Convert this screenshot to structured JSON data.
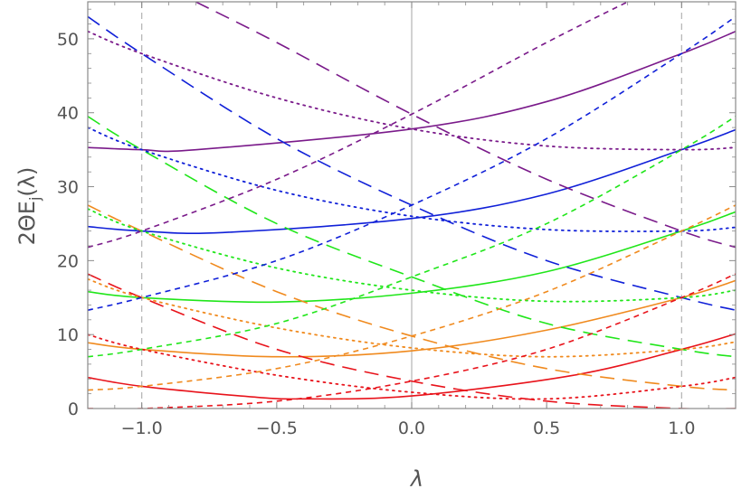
{
  "chart_data": {
    "type": "line",
    "title": "",
    "xlabel": "λ",
    "ylabel": "2ΘE_j(λ)",
    "xlim": [
      -1.2,
      1.2
    ],
    "ylim": [
      0,
      55
    ],
    "x_ticks": [
      -1.0,
      -0.5,
      0.0,
      0.5,
      1.0
    ],
    "x_tick_labels": [
      "−1.0",
      "−0.5",
      "0.0",
      "0.5",
      "1.0"
    ],
    "y_ticks": [
      0,
      10,
      20,
      30,
      40,
      50
    ],
    "y_tick_labels": [
      "0",
      "10",
      "20",
      "30",
      "40",
      "50"
    ],
    "reference_lines": [
      {
        "orientation": "vertical",
        "x": -1.0,
        "style": "dashed",
        "color": "#b3b3b3"
      },
      {
        "orientation": "vertical",
        "x": 0.0,
        "style": "solid",
        "color": "#b3b3b3"
      },
      {
        "orientation": "vertical",
        "x": 1.0,
        "style": "dashed",
        "color": "#b3b3b3"
      }
    ],
    "colors": {
      "red": "#e8131b",
      "orange": "#f08a1e",
      "green": "#20e61a",
      "blue": "#1020d8",
      "purple": "#7a1a8a"
    },
    "series": [
      {
        "name": "red-solid",
        "color": "red",
        "style": "solid",
        "x": [
          -1.2,
          -1.0,
          -0.6,
          -0.4,
          0.0,
          0.6,
          1.0,
          1.2
        ],
        "y": [
          4.2,
          3.0,
          1.6,
          1.3,
          1.7,
          4.5,
          8.0,
          10.1
        ]
      },
      {
        "name": "orange-solid",
        "color": "orange",
        "style": "solid",
        "x": [
          -1.2,
          -1.0,
          -0.5,
          0.0,
          0.5,
          1.0,
          1.2
        ],
        "y": [
          8.9,
          8.0,
          7.0,
          7.8,
          10.6,
          15.0,
          17.3
        ]
      },
      {
        "name": "green-solid",
        "color": "green",
        "style": "solid",
        "x": [
          -1.2,
          -1.0,
          -0.5,
          0.0,
          0.5,
          1.0,
          1.2
        ],
        "y": [
          15.8,
          15.0,
          14.4,
          15.6,
          18.5,
          24.0,
          26.6
        ]
      },
      {
        "name": "blue-solid",
        "color": "blue",
        "style": "solid",
        "x": [
          -1.2,
          -1.0,
          -0.7,
          0.0,
          0.5,
          1.0,
          1.2
        ],
        "y": [
          24.6,
          24.0,
          23.8,
          25.7,
          29.0,
          35.0,
          37.7
        ]
      },
      {
        "name": "purple-solid",
        "color": "purple",
        "style": "solid",
        "x": [
          -1.2,
          -1.0,
          -0.8,
          0.0,
          0.5,
          1.0,
          1.2
        ],
        "y": [
          35.3,
          35.0,
          35.0,
          37.8,
          41.5,
          48.0,
          51.0
        ]
      },
      {
        "name": "red-longdash",
        "color": "red",
        "style": "longdash",
        "x": [
          -1.2,
          -1.0,
          -0.5,
          0.0,
          0.5,
          1.0,
          1.2
        ],
        "y": [
          18.2,
          15.0,
          8.0,
          3.7,
          1.0,
          0.0,
          0.0
        ]
      },
      {
        "name": "orange-longdash",
        "color": "orange",
        "style": "longdash",
        "x": [
          -1.2,
          -1.0,
          -0.5,
          0.0,
          0.5,
          1.0,
          1.2
        ],
        "y": [
          27.5,
          24.0,
          15.8,
          9.8,
          5.4,
          3.0,
          2.5
        ]
      },
      {
        "name": "green-longdash",
        "color": "green",
        "style": "longdash",
        "x": [
          -1.2,
          -1.0,
          -0.5,
          0.0,
          0.5,
          1.0,
          1.2
        ],
        "y": [
          39.5,
          35.0,
          25.0,
          17.8,
          11.5,
          8.0,
          7.0
        ]
      },
      {
        "name": "blue-longdash",
        "color": "blue",
        "style": "longdash",
        "x": [
          -1.2,
          -1.0,
          -0.5,
          0.0,
          0.5,
          1.0,
          1.2
        ],
        "y": [
          53.0,
          48.0,
          36.5,
          27.5,
          20.0,
          15.0,
          13.3
        ]
      },
      {
        "name": "purple-longdash",
        "color": "purple",
        "style": "longdash",
        "x": [
          -0.8,
          -0.5,
          0.0,
          0.5,
          1.0,
          1.2
        ],
        "y": [
          55.0,
          49.5,
          39.8,
          31.0,
          24.0,
          21.8
        ]
      },
      {
        "name": "red-dotted",
        "color": "red",
        "style": "dotted",
        "x": [
          -1.2,
          -1.0,
          -0.5,
          0.0,
          0.5,
          1.0,
          1.2
        ],
        "y": [
          10.0,
          8.0,
          4.5,
          2.2,
          1.3,
          3.0,
          4.2
        ]
      },
      {
        "name": "orange-dotted",
        "color": "orange",
        "style": "dotted",
        "x": [
          -1.2,
          -1.0,
          -0.5,
          0.0,
          0.5,
          1.0,
          1.2
        ],
        "y": [
          17.5,
          15.0,
          10.9,
          8.2,
          7.0,
          8.0,
          9.0
        ]
      },
      {
        "name": "green-dotted",
        "color": "green",
        "style": "dotted",
        "x": [
          -1.2,
          -1.0,
          -0.5,
          0.0,
          0.5,
          1.0,
          1.2
        ],
        "y": [
          27.0,
          24.0,
          19.0,
          16.0,
          14.5,
          15.0,
          16.0
        ]
      },
      {
        "name": "blue-dotted",
        "color": "blue",
        "style": "dotted",
        "x": [
          -1.2,
          -1.0,
          -0.5,
          0.0,
          0.5,
          1.0,
          1.2
        ],
        "y": [
          38.0,
          35.0,
          29.5,
          26.0,
          24.2,
          24.0,
          24.5
        ]
      },
      {
        "name": "purple-dotted",
        "color": "purple",
        "style": "dotted",
        "x": [
          -1.2,
          -1.0,
          -0.5,
          0.0,
          0.5,
          1.0,
          1.2
        ],
        "y": [
          51.0,
          48.0,
          42.0,
          37.8,
          35.5,
          35.0,
          35.3
        ]
      },
      {
        "name": "red-shortdash",
        "color": "red",
        "style": "shortdash",
        "x": [
          -1.2,
          -1.0,
          -0.5,
          0.0,
          0.5,
          1.0,
          1.2
        ],
        "y": [
          0.0,
          0.0,
          1.0,
          3.7,
          8.0,
          15.0,
          18.2
        ]
      },
      {
        "name": "orange-shortdash",
        "color": "orange",
        "style": "shortdash",
        "x": [
          -1.2,
          -1.0,
          -0.5,
          0.0,
          0.5,
          1.0,
          1.2
        ],
        "y": [
          2.5,
          3.0,
          5.4,
          9.8,
          15.8,
          24.0,
          27.5
        ]
      },
      {
        "name": "green-shortdash",
        "color": "green",
        "style": "shortdash",
        "x": [
          -1.2,
          -1.0,
          -0.5,
          0.0,
          0.5,
          1.0,
          1.2
        ],
        "y": [
          7.0,
          8.0,
          11.5,
          17.8,
          25.0,
          35.0,
          39.5
        ]
      },
      {
        "name": "blue-shortdash",
        "color": "blue",
        "style": "shortdash",
        "x": [
          -1.2,
          -1.0,
          -0.5,
          0.0,
          0.5,
          1.0,
          1.2
        ],
        "y": [
          13.3,
          15.0,
          20.0,
          27.5,
          36.5,
          48.0,
          53.0
        ]
      },
      {
        "name": "purple-shortdash",
        "color": "purple",
        "style": "shortdash",
        "x": [
          -1.2,
          -1.0,
          -0.5,
          0.0,
          0.5,
          0.8
        ],
        "y": [
          21.8,
          24.0,
          31.0,
          39.8,
          49.5,
          55.0
        ]
      }
    ]
  }
}
